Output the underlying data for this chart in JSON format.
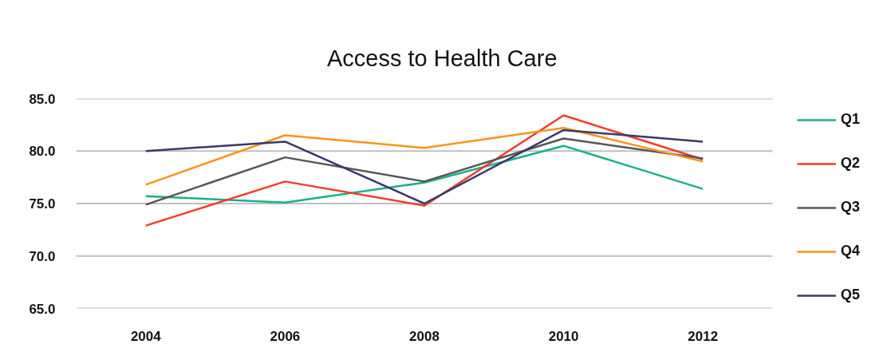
{
  "chart_data": {
    "type": "line",
    "title": "Access to Health Care",
    "categories": [
      "2004",
      "2006",
      "2008",
      "2010",
      "2012"
    ],
    "series": [
      {
        "name": "Q1",
        "color": "#1aaf8b",
        "values": [
          75.7,
          75.1,
          77.0,
          80.5,
          76.4
        ]
      },
      {
        "name": "Q2",
        "color": "#f03c2a",
        "values": [
          72.9,
          77.1,
          74.8,
          83.4,
          79.2
        ]
      },
      {
        "name": "Q3",
        "color": "#555555",
        "values": [
          74.9,
          79.4,
          77.1,
          81.2,
          79.3
        ]
      },
      {
        "name": "Q4",
        "color": "#f7941d",
        "values": [
          76.8,
          81.5,
          80.3,
          82.2,
          79.0
        ]
      },
      {
        "name": "Q5",
        "color": "#3b3869",
        "values": [
          80.0,
          80.9,
          75.0,
          82.0,
          80.9
        ]
      }
    ],
    "ylim": [
      65,
      85
    ],
    "yticks": [
      {
        "value": 65,
        "label": "65.0"
      },
      {
        "value": 70,
        "label": "70.0"
      },
      {
        "value": 75,
        "label": "75.0"
      },
      {
        "value": 80,
        "label": "80.0"
      },
      {
        "value": 85,
        "label": "85.0"
      }
    ],
    "grid": "y",
    "legend": "right"
  }
}
